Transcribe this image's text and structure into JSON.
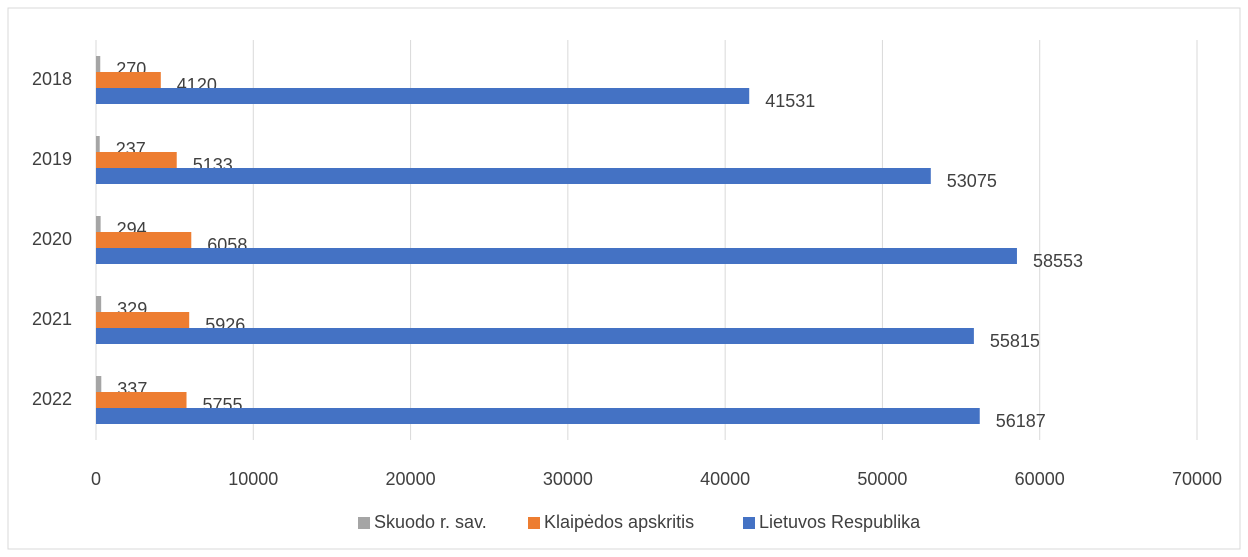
{
  "chart_data": {
    "type": "bar",
    "orientation": "horizontal",
    "categories": [
      "2018",
      "2019",
      "2020",
      "2021",
      "2022"
    ],
    "series": [
      {
        "name": "Skuodo r. sav.",
        "color": "#a5a5a5",
        "values": [
          270,
          237,
          294,
          329,
          337
        ]
      },
      {
        "name": "Klaipėdos apskritis",
        "color": "#ed7d31",
        "values": [
          4120,
          5133,
          6058,
          5926,
          5755
        ]
      },
      {
        "name": "Lietuvos Respublika",
        "color": "#4472c4",
        "values": [
          41531,
          53075,
          58553,
          55815,
          56187
        ]
      }
    ],
    "xlim": [
      0,
      70000
    ],
    "xticks": [
      0,
      10000,
      20000,
      30000,
      40000,
      50000,
      60000,
      70000
    ],
    "grid": true,
    "legend": "bottom"
  }
}
